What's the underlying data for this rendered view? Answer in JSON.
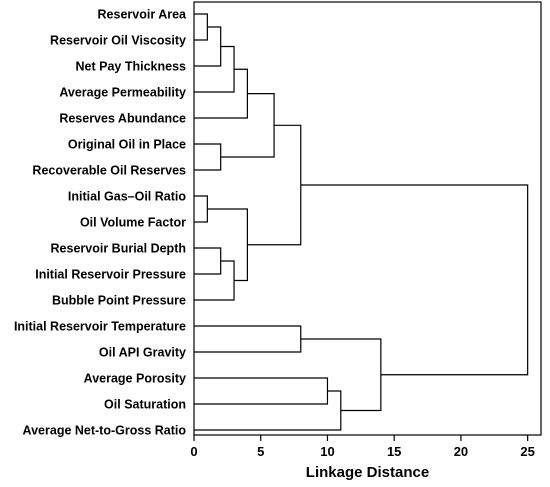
{
  "chart_data": {
    "type": "dendrogram",
    "orientation": "horizontal",
    "xlabel": "Linkage Distance",
    "xlim": [
      0,
      26
    ],
    "xticks": [
      0,
      5,
      10,
      15,
      20,
      25
    ],
    "leaves": [
      "Reservoir Area",
      "Reservoir Oil Viscosity",
      "Net Pay Thickness",
      "Average Permeability",
      "Reserves Abundance",
      "Original Oil in Place",
      "Recoverable Oil Reserves",
      "Initial Gas–Oil Ratio",
      "Oil Volume Factor",
      "Reservoir Burial Depth",
      "Initial Reservoir Pressure",
      "Bubble Point Pressure",
      "Initial Reservoir Temperature",
      "Oil API Gravity",
      "Average Porosity",
      "Oil Saturation",
      "Average Net-to-Gross Ratio"
    ],
    "merges": [
      {
        "id": "c1",
        "left": 0,
        "right": 1,
        "distance": 1
      },
      {
        "id": "c2",
        "left": "c1",
        "right": 2,
        "distance": 2
      },
      {
        "id": "c3",
        "left": "c2",
        "right": 3,
        "distance": 3
      },
      {
        "id": "c4",
        "left": "c3",
        "right": 4,
        "distance": 4
      },
      {
        "id": "c5",
        "left": 5,
        "right": 6,
        "distance": 2
      },
      {
        "id": "c6",
        "left": "c4",
        "right": "c5",
        "distance": 6
      },
      {
        "id": "c7",
        "left": 7,
        "right": 8,
        "distance": 1
      },
      {
        "id": "c8",
        "left": 9,
        "right": 10,
        "distance": 2
      },
      {
        "id": "c9",
        "left": "c8",
        "right": 11,
        "distance": 3
      },
      {
        "id": "c10",
        "left": "c7",
        "right": "c9",
        "distance": 4
      },
      {
        "id": "c11",
        "left": "c6",
        "right": "c10",
        "distance": 8
      },
      {
        "id": "c12",
        "left": 12,
        "right": 13,
        "distance": 8
      },
      {
        "id": "c13",
        "left": 14,
        "right": 15,
        "distance": 10
      },
      {
        "id": "c14",
        "left": "c13",
        "right": 16,
        "distance": 11
      },
      {
        "id": "c15",
        "left": "c12",
        "right": "c14",
        "distance": 14
      },
      {
        "id": "c16",
        "left": "c11",
        "right": "c15",
        "distance": 25
      }
    ]
  }
}
